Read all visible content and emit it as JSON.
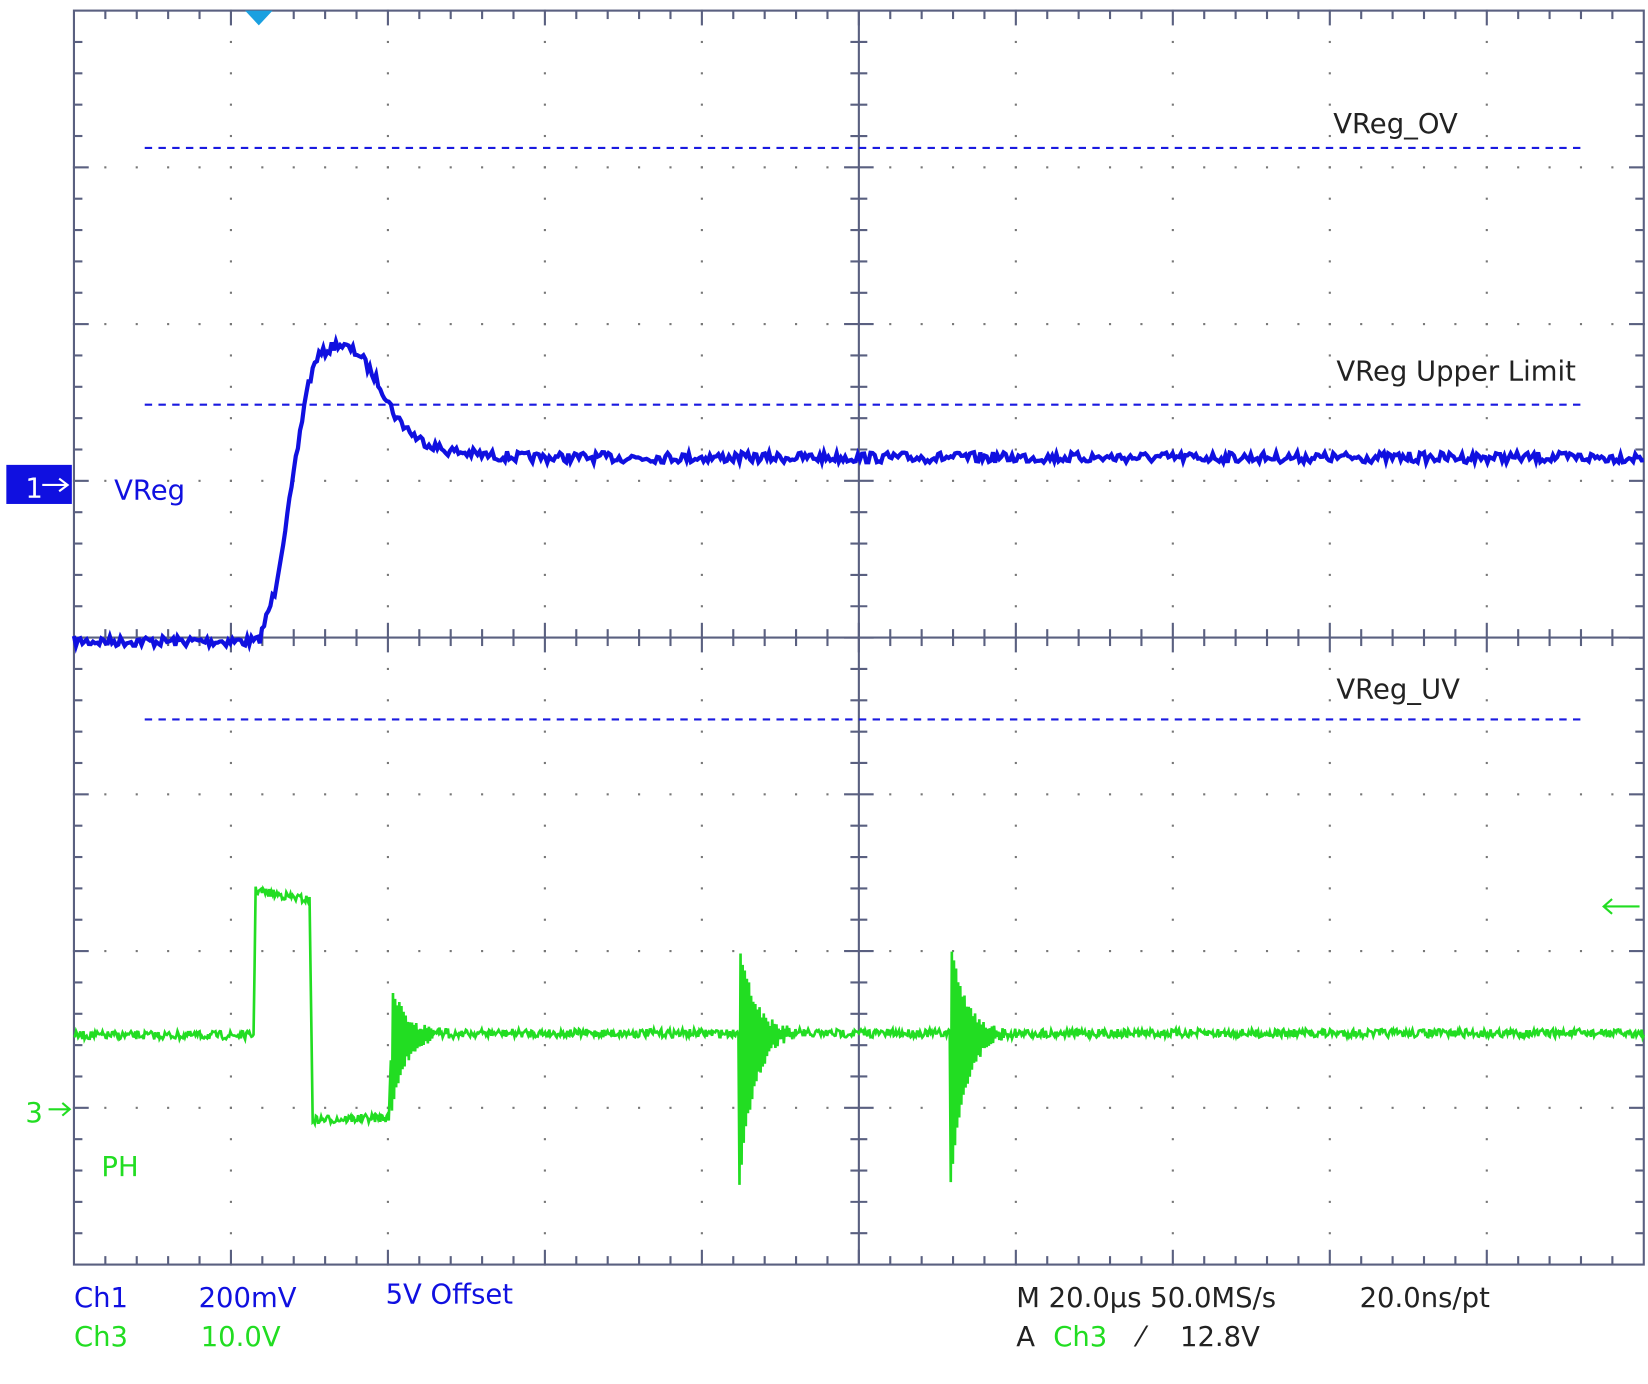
{
  "channels": [
    {
      "marker": "1",
      "label": "VReg",
      "name": "Ch1",
      "scale": "200mV",
      "offset": "5V Offset"
    },
    {
      "marker": "3",
      "label": "PH",
      "name": "Ch3",
      "scale": "10.0V"
    }
  ],
  "reference_lines": [
    "VReg_OV",
    "VReg Upper Limit",
    "VReg_UV"
  ],
  "timebase": {
    "horizontal": "M 20.0µs 50.0MS/s",
    "resolution": "20.0ns/pt"
  },
  "trigger": {
    "mode": "A",
    "source": "Ch3",
    "slope": "⁄",
    "level": "12.8V"
  }
}
